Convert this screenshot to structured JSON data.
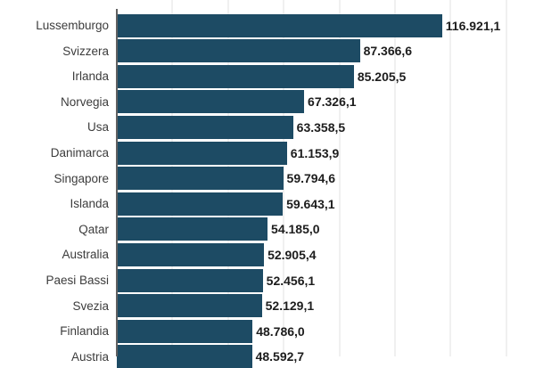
{
  "colors": {
    "background": "#ffffff",
    "bar": "#1d4b64",
    "category_label": "#3c3c3c",
    "value_label": "#1d1d1d",
    "gridline": "#f0f0f0",
    "axis_line": "#616161"
  },
  "chart_data": {
    "type": "bar",
    "orientation": "horizontal",
    "title": "",
    "xlabel": "",
    "ylabel": "",
    "categories": [
      "Lussemburgo",
      "Svizzera",
      "Irlanda",
      "Norvegia",
      "Usa",
      "Danimarca",
      "Singapore",
      "Islanda",
      "Qatar",
      "Australia",
      "Paesi Bassi",
      "Svezia",
      "Finlandia",
      "Austria"
    ],
    "values": [
      116921.1,
      87366.6,
      85205.5,
      67326.1,
      63358.5,
      61153.9,
      59794.6,
      59643.1,
      54185.0,
      52905.4,
      52456.1,
      52129.1,
      48786.0,
      48592.7
    ],
    "value_labels": [
      "116.921,1",
      "87.366,6",
      "85.205,5",
      "67.326,1",
      "63.358,5",
      "61.153,9",
      "59.794,6",
      "59.643,1",
      "54.185,0",
      "52.905,4",
      "52.456,1",
      "52.129,1",
      "48.786,0",
      "48.592,7"
    ],
    "xlim": [
      0,
      150000
    ],
    "gridline_interval": 20000,
    "grid": true,
    "legend_position": "none",
    "value_label_position": "outside-end",
    "category_label_position": "left"
  }
}
